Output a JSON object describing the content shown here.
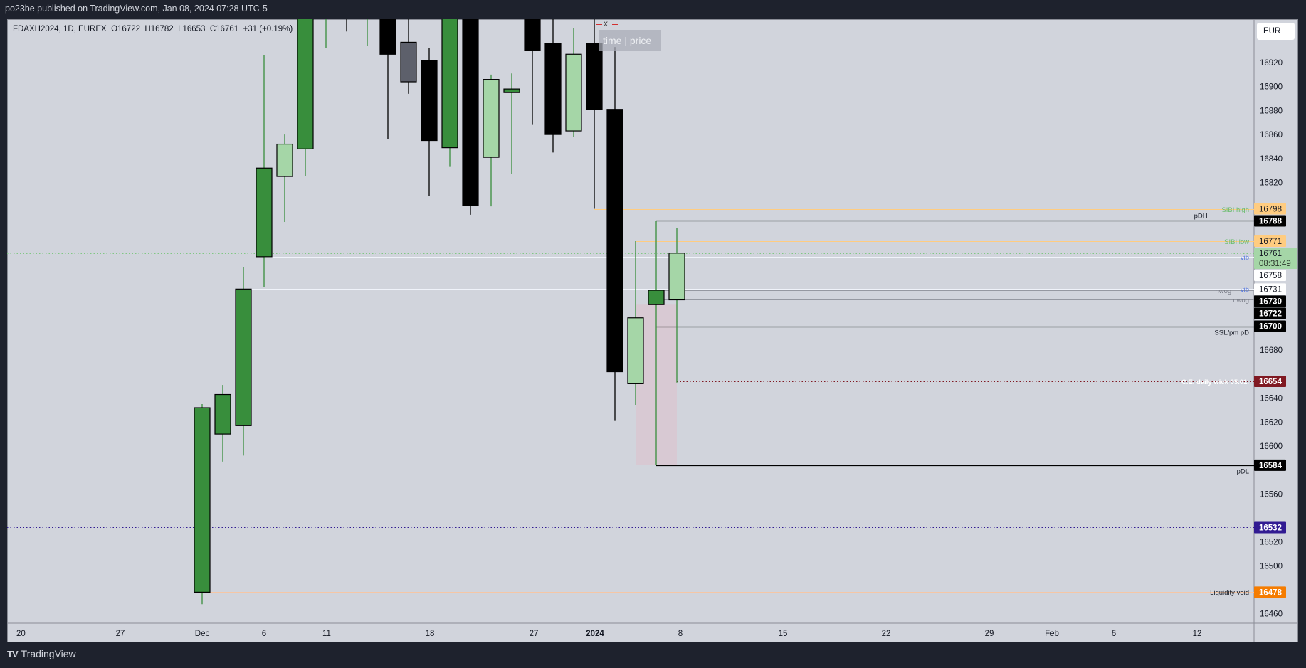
{
  "header": {
    "published": "po23be published on TradingView.com, Jan 08, 2024 07:28 UTC-5"
  },
  "legend": {
    "symbol": "FDAXH2024, 1D, EUREX",
    "open": "O16722",
    "high": "H16782",
    "low": "L16653",
    "close": "C16761",
    "change": "+31 (+0.19%)"
  },
  "currency_button": "EUR",
  "tooltip": {
    "close": "x",
    "text": "time | price"
  },
  "footer": {
    "logo_mark": "TV",
    "logo_text": "TradingView"
  },
  "colors": {
    "background": "#d1d4dc",
    "up": "#388e3c",
    "up_light": "#a5d6a7",
    "down": "#000000",
    "neutral": "#5d606b",
    "zone": "#d8c8d2"
  },
  "chart_data": {
    "type": "candlestick",
    "symbol": "FDAXH2024",
    "interval": "1D",
    "ylim": [
      16456,
      16956
    ],
    "y_ticks": [
      16460,
      16480,
      16500,
      16520,
      16540,
      16560,
      16580,
      16600,
      16620,
      16640,
      16660,
      16680,
      16700,
      16720,
      16740,
      16760,
      16780,
      16800,
      16820,
      16840,
      16860,
      16880,
      16900,
      16920
    ],
    "x_tick_labels": [
      "20",
      "27",
      "Dec",
      "6",
      "11",
      "18",
      "27",
      "2024",
      "8",
      "15",
      "22",
      "29",
      "Feb",
      "6",
      "12"
    ],
    "note_null": "null = beyond the top of the visible range",
    "candles": [
      {
        "date": "2023-12-01",
        "o": 16478,
        "h": 16635,
        "l": 16468,
        "c": 16632,
        "style": "up"
      },
      {
        "date": "2023-12-04",
        "o": 16610,
        "h": 16651,
        "l": 16587,
        "c": 16643,
        "style": "up"
      },
      {
        "date": "2023-12-05",
        "o": 16617,
        "h": 16749,
        "l": 16592,
        "c": 16731,
        "style": "up"
      },
      {
        "date": "2023-12-06",
        "o": 16758,
        "h": 16926,
        "l": 16733,
        "c": 16832,
        "style": "up"
      },
      {
        "date": "2023-12-07",
        "o": 16825,
        "h": 16860,
        "l": 16787,
        "c": 16852,
        "style": "up_light"
      },
      {
        "date": "2023-12-08",
        "o": 16848,
        "h": null,
        "l": 16825,
        "c": null,
        "style": "up"
      },
      {
        "date": "2023-12-11",
        "o": null,
        "h": null,
        "l": 16932,
        "c": null,
        "style": "up"
      },
      {
        "date": "2023-12-12",
        "o": null,
        "h": null,
        "l": 16946,
        "c": null,
        "style": "down"
      },
      {
        "date": "2023-12-13",
        "o": null,
        "h": null,
        "l": 16934,
        "c": null,
        "style": "up"
      },
      {
        "date": "2023-12-14",
        "o": null,
        "h": null,
        "l": 16856,
        "c": 16927,
        "style": "down"
      },
      {
        "date": "2023-12-15",
        "o": 16937,
        "h": null,
        "l": 16894,
        "c": 16904,
        "style": "neutral"
      },
      {
        "date": "2023-12-18",
        "o": 16922,
        "h": 16932,
        "l": 16809,
        "c": 16855,
        "style": "down"
      },
      {
        "date": "2023-12-19",
        "o": 16849,
        "h": null,
        "l": 16833,
        "c": null,
        "style": "up"
      },
      {
        "date": "2023-12-20",
        "o": null,
        "h": null,
        "l": 16793,
        "c": 16801,
        "style": "down"
      },
      {
        "date": "2023-12-21",
        "o": 16841,
        "h": 16910,
        "l": 16800,
        "c": 16906,
        "style": "up_light"
      },
      {
        "date": "2023-12-22",
        "o": 16895,
        "h": 16911,
        "l": 16827,
        "c": 16898,
        "style": "up"
      },
      {
        "date": "2023-12-27",
        "o": null,
        "h": null,
        "l": 16868,
        "c": 16930,
        "style": "down"
      },
      {
        "date": "2023-12-28",
        "o": 16936,
        "h": null,
        "l": 16845,
        "c": 16860,
        "style": "down"
      },
      {
        "date": "2023-12-29",
        "o": 16863,
        "h": 16949,
        "l": 16858,
        "c": 16927,
        "style": "up_light"
      },
      {
        "date": "2024-01-02",
        "o": 16936,
        "h": null,
        "l": 16798,
        "c": 16881,
        "style": "down"
      },
      {
        "date": "2024-01-03",
        "o": 16881,
        "h": 16933,
        "l": 16621,
        "c": 16662,
        "style": "down"
      },
      {
        "date": "2024-01-04",
        "o": 16652,
        "h": 16771,
        "l": 16634,
        "c": 16707,
        "style": "up_light"
      },
      {
        "date": "2024-01-05",
        "o": 16718,
        "h": 16788,
        "l": 16584,
        "c": 16730,
        "style": "up"
      },
      {
        "date": "2024-01-08",
        "o": 16722,
        "h": 16782,
        "l": 16653,
        "c": 16761,
        "style": "up_light"
      }
    ],
    "zone": {
      "from_date": "2024-01-04",
      "to_date": "2024-01-08",
      "top": 16718,
      "bottom": 16584
    },
    "levels": [
      {
        "name": "sibi-high",
        "price": 16798,
        "from_date": "2024-01-02",
        "label": "SIBI high",
        "label_color": "#66bb6a",
        "line_color": "#ffcc80",
        "dash": "solid",
        "label_pos": "center",
        "tag": "16798",
        "tag_bg": "#ffcc80",
        "tag_fg": "#131722"
      },
      {
        "name": "pdh",
        "price": 16788,
        "from_date": "2024-01-05",
        "label": "pDH",
        "label_color": "#131722",
        "line_color": "#000000",
        "dash": "solid",
        "label_pos": "above",
        "tag": "16788",
        "tag_bg": "#000000",
        "tag_fg": "#ffffff"
      },
      {
        "name": "sibi-low",
        "price": 16771,
        "from_date": "2024-01-04",
        "label": "SIBI low",
        "label_color": "#66bb6a",
        "line_color": "#ffcc80",
        "dash": "solid",
        "label_pos": "center",
        "tag": "16771",
        "tag_bg": "#ffcc80",
        "tag_fg": "#131722"
      },
      {
        "name": "last-price",
        "price": 16761,
        "from_date": null,
        "label": "",
        "label_color": "#66bb6a",
        "line_color": "#81c784",
        "dash": "dotted",
        "label_pos": "center",
        "tag": "16761",
        "tag2": "08:31:49",
        "tag_bg": "#a5d6a7",
        "tag_fg": "#131722"
      },
      {
        "name": "vib-upper",
        "price": 16758,
        "from_date": "2023-12-06",
        "label": "vib",
        "label_color": "#4f73e0",
        "line_color": "#f0f3fa",
        "dash": "solid",
        "label_pos": "center",
        "tag": "16758",
        "tag_bg": "#ffffff",
        "tag_fg": "#131722"
      },
      {
        "name": "vib-lower",
        "price": 16731,
        "from_date": "2023-12-05",
        "label": "vib",
        "label_color": "#4f73e0",
        "line_color": "#f0f3fa",
        "dash": "solid",
        "label_pos": "center",
        "tag": "16731",
        "tag_bg": "#ffffff",
        "tag_fg": "#131722"
      },
      {
        "name": "nwog-upper",
        "price": 16730,
        "from_date": "2024-01-05",
        "label": "nwog",
        "label_color": "#787b86",
        "line_color": "#9598a1",
        "dash": "solid",
        "label_pos": "center",
        "tag": "16730",
        "tag_bg": "#000000",
        "tag_fg": "#ffffff"
      },
      {
        "name": "nwog-lower",
        "price": 16722,
        "from_date": "2024-01-05",
        "label": "nwog",
        "label_color": "#787b86",
        "line_color": "#9598a1",
        "dash": "solid",
        "label_pos": "center",
        "tag": "16722",
        "tag_bg": "#000000",
        "tag_fg": "#ffffff"
      },
      {
        "name": "ssl-pm-pd",
        "price": 16700,
        "from_date": "2024-01-05",
        "label": "SSL/pm pD",
        "label_color": "#131722",
        "line_color": "#000000",
        "dash": "solid",
        "label_pos": "below",
        "tag": "16700",
        "tag_bg": "#000000",
        "tag_fg": "#ffffff"
      },
      {
        "name": "ce-daily-wick",
        "price": 16654,
        "from_date": "2024-01-08",
        "label": "C.E. daily wick 05.01.",
        "label_color": "#ffffff",
        "line_color": "#801922",
        "dash": "dotted",
        "label_pos": "center",
        "tag": "16654",
        "tag_bg": "#801922",
        "tag_fg": "#ffffff"
      },
      {
        "name": "pdl",
        "price": 16584,
        "from_date": "2024-01-05",
        "label": "pDL",
        "label_color": "#131722",
        "line_color": "#000000",
        "dash": "solid",
        "label_pos": "below",
        "tag": "16584",
        "tag_bg": "#000000",
        "tag_fg": "#ffffff"
      },
      {
        "name": "level-16532",
        "price": 16532,
        "from_date": null,
        "label": "",
        "label_color": "#311b92",
        "line_color": "#311b92",
        "dash": "dotted",
        "label_pos": "center",
        "tag": "16532",
        "tag_bg": "#311b92",
        "tag_fg": "#ffffff"
      },
      {
        "name": "liquidity-void",
        "price": 16478,
        "from_date": "2023-12-01",
        "label": "Liquidity void",
        "label_color": "#131722",
        "line_color": "#f5c6a5",
        "dash": "solid",
        "label_pos": "center",
        "tag": "16478",
        "tag_bg": "#f57c00",
        "tag_fg": "#ffffff"
      }
    ]
  }
}
